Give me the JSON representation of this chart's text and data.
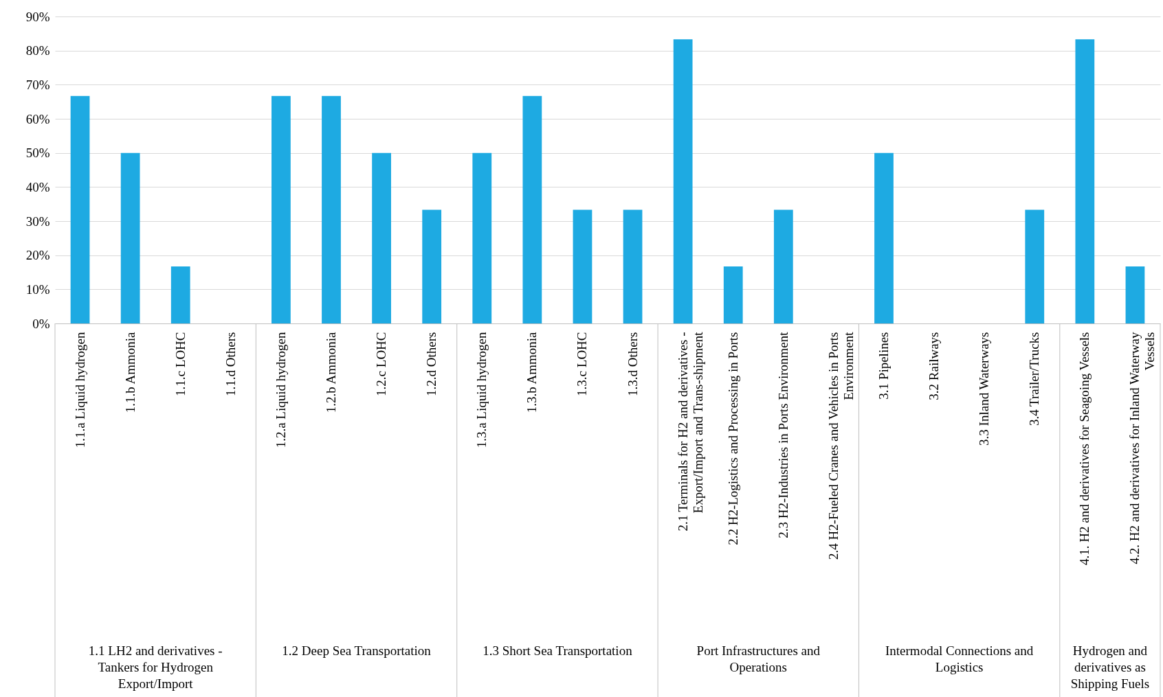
{
  "chart_data": {
    "type": "bar",
    "categories": [
      "1.1.a Liquid hydrogen",
      "1.1.b Ammonia",
      "1.1.c LOHC",
      "1.1.d Others",
      "1.2.a Liquid hydrogen",
      "1.2.b Ammonia",
      "1.2.c LOHC",
      "1.2.d Others",
      "1.3.a Liquid hydrogen",
      "1.3.b Ammonia",
      "1.3.c LOHC",
      "1.3.d Others",
      "2.1 Terminals for H2 and derivatives - Export/Import and Trans-shipment",
      "2.2 H2-Logistics and Processing in Ports",
      "2.3 H2-Industries in Ports Environment",
      "2.4 H2-Fueled Cranes and Vehicles in Ports Environment",
      "3.1 Pipelines",
      "3.2 Railways",
      "3.3 Inland Waterways",
      "3.4 Trailer/Trucks",
      "4.1. H2 and derivatives for Seagoing Vessels",
      "4.2. H2 and derivatives for Inland Waterway Vessels"
    ],
    "values": [
      66.7,
      50,
      16.7,
      0,
      66.7,
      66.7,
      50,
      33.3,
      50,
      66.7,
      33.3,
      33.3,
      83.3,
      16.7,
      33.3,
      0,
      50,
      0,
      0,
      33.3,
      83.3,
      16.7
    ],
    "color": "#1eaae2",
    "ylim": [
      0,
      90
    ],
    "yticks": [
      {
        "value": 0,
        "label": "0%"
      },
      {
        "value": 10,
        "label": "10%"
      },
      {
        "value": 20,
        "label": "20%"
      },
      {
        "value": 30,
        "label": "30%"
      },
      {
        "value": 40,
        "label": "40%"
      },
      {
        "value": 50,
        "label": "50%"
      },
      {
        "value": 60,
        "label": "60%"
      },
      {
        "value": 70,
        "label": "70%"
      },
      {
        "value": 80,
        "label": "80%"
      },
      {
        "value": 90,
        "label": "90%"
      }
    ],
    "grid": "y",
    "annotations": [
      "1.1 LH2 and derivatives - Tankers for Hydrogen Export/Import",
      "1.2 Deep Sea Transportation",
      "1.3 Short Sea Transportation",
      "Port Infrastructures and Operations",
      "Intermodal Connections and Logistics",
      "Hydrogen and derivatives as Shipping Fuels"
    ]
  }
}
